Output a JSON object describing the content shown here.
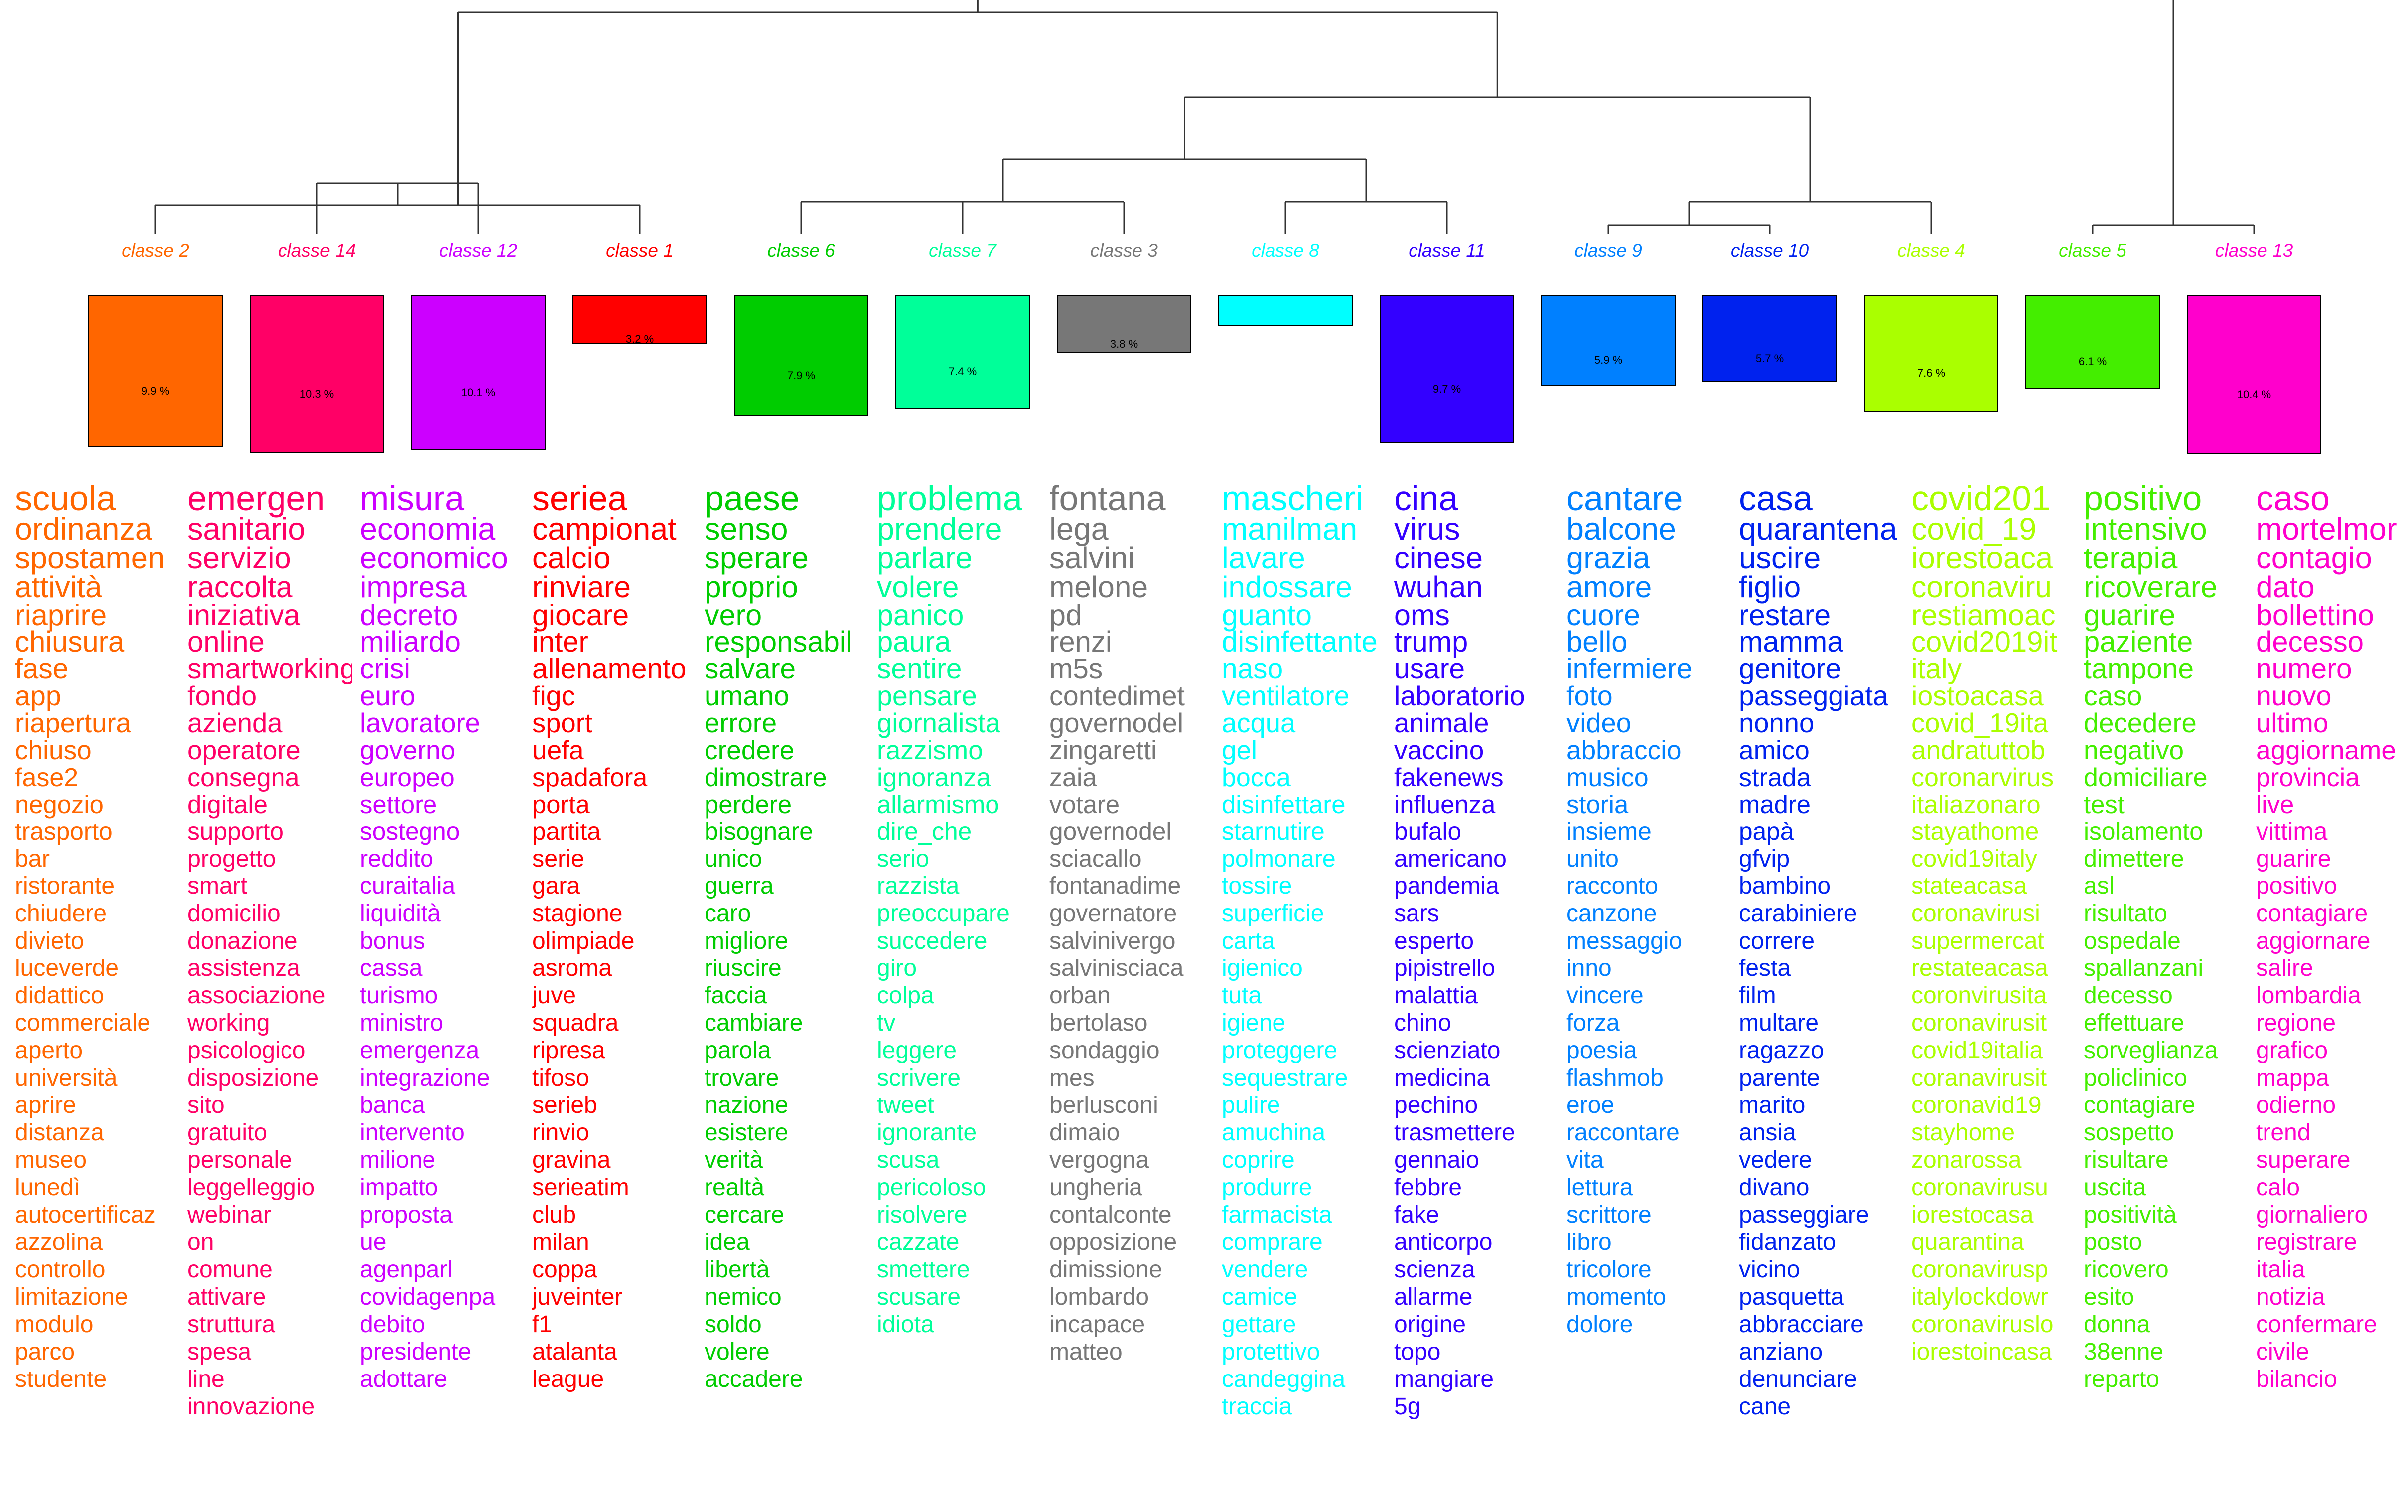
{
  "classes": [
    {
      "label": "classe  2",
      "color": "#FF6600",
      "percent": "9.9 %",
      "share": 9.9,
      "words": [
        "scuola",
        "ordinanza",
        "spostamen",
        "attività",
        "riaprire",
        "chiusura",
        "fase",
        "app",
        "riapertura",
        "chiuso",
        "fase2",
        "negozio",
        "trasporto",
        "bar",
        "ristorante",
        "chiudere",
        "divieto",
        "luceverde",
        "didattico",
        "commerciale",
        "aperto",
        "università",
        "aprire",
        "distanza",
        "museo",
        "lunedì",
        "autocertificaz",
        "azzolina",
        "controllo",
        "limitazione",
        "modulo",
        "parco",
        "studente"
      ]
    },
    {
      "label": "classe  14",
      "color": "#FF0066",
      "percent": "10.3 %",
      "share": 10.3,
      "words": [
        "emergen",
        "sanitario",
        "servizio",
        "raccolta",
        "iniziativa",
        "online",
        "smartworking",
        "fondo",
        "azienda",
        "operatore",
        "consegna",
        "digitale",
        "supporto",
        "progetto",
        "smart",
        "domicilio",
        "donazione",
        "assistenza",
        "associazione",
        "working",
        "psicologico",
        "disposizione",
        "sito",
        "gratuito",
        "personale",
        "leggelleggio",
        "webinar",
        "on",
        "comune",
        "attivare",
        "struttura",
        "spesa",
        "line",
        "innovazione"
      ]
    },
    {
      "label": "classe  12",
      "color": "#CC00FF",
      "percent": "10.1 %",
      "share": 10.1,
      "words": [
        "misura",
        "economia",
        "economico",
        "impresa",
        "decreto",
        "miliardo",
        "crisi",
        "euro",
        "lavoratore",
        "governo",
        "europeo",
        "settore",
        "sostegno",
        "reddito",
        "curaitalia",
        "liquidità",
        "bonus",
        "cassa",
        "turismo",
        "ministro",
        "emergenza",
        "integrazione",
        "banca",
        "intervento",
        "milione",
        "impatto",
        "proposta",
        "ue",
        "agenparl",
        "covidagenpa",
        "debito",
        "presidente",
        "adottare"
      ]
    },
    {
      "label": "classe  1",
      "color": "#FF0000",
      "percent": "3.2 %",
      "share": 3.2,
      "words": [
        "seriea",
        "campionat",
        "calcio",
        "rinviare",
        "giocare",
        "inter",
        "allenamento",
        "figc",
        "sport",
        "uefa",
        "spadafora",
        "porta",
        "partita",
        "serie",
        "gara",
        "stagione",
        "olimpiade",
        "asroma",
        "juve",
        "squadra",
        "ripresa",
        "tifoso",
        "serieb",
        "rinvio",
        "gravina",
        "serieatim",
        "club",
        "milan",
        "coppa",
        "juveinter",
        "f1",
        "atalanta",
        "league"
      ]
    },
    {
      "label": "classe  6",
      "color": "#00CC00",
      "percent": "7.9 %",
      "share": 7.9,
      "words": [
        "paese",
        "senso",
        "sperare",
        "proprio",
        "vero",
        "responsabil",
        "salvare",
        "umano",
        "errore",
        "credere",
        "dimostrare",
        "perdere",
        "bisognare",
        "unico",
        "guerra",
        "caro",
        "migliore",
        "riuscire",
        "faccia",
        "cambiare",
        "parola",
        "trovare",
        "nazione",
        "esistere",
        "verità",
        "realtà",
        "cercare",
        "idea",
        "libertà",
        "nemico",
        "soldo",
        "volere",
        "accadere"
      ]
    },
    {
      "label": "classe  7",
      "color": "#00FF99",
      "percent": "7.4 %",
      "share": 7.4,
      "words": [
        "problema",
        "prendere",
        "parlare",
        "volere",
        "panico",
        "paura",
        "sentire",
        "pensare",
        "giornalista",
        "razzismo",
        "ignoranza",
        "allarmismo",
        "dire_che",
        "serio",
        "razzista",
        "preoccupare",
        "succedere",
        "giro",
        "colpa",
        "tv",
        "leggere",
        "scrivere",
        "tweet",
        "ignorante",
        "scusa",
        "pericoloso",
        "risolvere",
        "cazzate",
        "smettere",
        "scusare",
        "idiota"
      ]
    },
    {
      "label": "classe  3",
      "color": "#777777",
      "percent": "3.8 %",
      "share": 3.8,
      "words": [
        "fontana",
        "lega",
        "salvini",
        "melone",
        "pd",
        "renzi",
        "m5s",
        "contedimet",
        "governodel",
        "zingaretti",
        "zaia",
        "votare",
        "governodel",
        "sciacallo",
        "fontanadime",
        "governatore",
        "salvinivergo",
        "salvinisciaca",
        "orban",
        "bertolaso",
        "sondaggio",
        "mes",
        "berlusconi",
        "dimaio",
        "vergogna",
        "ungheria",
        "contalconte",
        "opposizione",
        "dimissione",
        "lombardo",
        "incapace",
        "matteo"
      ]
    },
    {
      "label": "classe  8",
      "color": "#00FFFF",
      "percent": "",
      "share": 2.0,
      "words": [
        "mascheri",
        "manilman",
        "lavare",
        "indossare",
        "guanto",
        "disinfettante",
        "naso",
        "ventilatore",
        "acqua",
        "gel",
        "bocca",
        "disinfettare",
        "starnutire",
        "polmonare",
        "tossire",
        "superficie",
        "carta",
        "igienico",
        "tuta",
        "igiene",
        "proteggere",
        "sequestrare",
        "pulire",
        "amuchina",
        "coprire",
        "produrre",
        "farmacista",
        "comprare",
        "vendere",
        "camice",
        "gettare",
        "protettivo",
        "candeggina",
        "traccia"
      ]
    },
    {
      "label": "classe  11",
      "color": "#3300FF",
      "percent": "9.7 %",
      "share": 9.7,
      "words": [
        "cina",
        "virus",
        "cinese",
        "wuhan",
        "oms",
        "trump",
        "usare",
        "laboratorio",
        "animale",
        "vaccino",
        "fakenews",
        "influenza",
        "bufalo",
        "americano",
        "pandemia",
        "sars",
        "esperto",
        "pipistrello",
        "malattia",
        "chino",
        "scienziato",
        "medicina",
        "pechino",
        "trasmettere",
        "gennaio",
        "febbre",
        "fake",
        "anticorpo",
        "scienza",
        "allarme",
        "origine",
        "topo",
        "mangiare",
        "5g"
      ]
    },
    {
      "label": "classe  9",
      "color": "#0080FF",
      "percent": "5.9 %",
      "share": 5.9,
      "words": [
        "cantare",
        "balcone",
        "grazia",
        "amore",
        "cuore",
        "bello",
        "infermiere",
        "foto",
        "video",
        "abbraccio",
        "musico",
        "storia",
        "insieme",
        "unito",
        "racconto",
        "canzone",
        "messaggio",
        "inno",
        "vincere",
        "forza",
        "poesia",
        "flashmob",
        "eroe",
        "raccontare",
        "vita",
        "lettura",
        "scrittore",
        "libro",
        "tricolore",
        "momento",
        "dolore"
      ]
    },
    {
      "label": "classe  10",
      "color": "#0022EE",
      "percent": "5.7 %",
      "share": 5.7,
      "words": [
        "casa",
        "quarantena",
        "uscire",
        "figlio",
        "restare",
        "mamma",
        "genitore",
        "passeggiata",
        "nonno",
        "amico",
        "strada",
        "madre",
        "papà",
        "gfvip",
        "bambino",
        "carabiniere",
        "correre",
        "festa",
        "film",
        "multare",
        "ragazzo",
        "parente",
        "marito",
        "ansia",
        "vedere",
        "divano",
        "passeggiare",
        "fidanzato",
        "vicino",
        "pasquetta",
        "abbracciare",
        "anziano",
        "denunciare",
        "cane"
      ]
    },
    {
      "label": "classe  4",
      "color": "#AAFF00",
      "percent": "7.6 %",
      "share": 7.6,
      "words": [
        "covid201",
        "covid_19",
        "iorestoaca",
        "coronaviru",
        "restiamoac",
        "covid2019it",
        "italy",
        "iostoacasa",
        "covid_19ita",
        "andratuttob",
        "coronarvirus",
        "italiazonaro",
        "stayathome",
        "covid19italy",
        "stateacasa",
        "coronavirusi",
        "supermercat",
        "restateacasa",
        "coronvirusita",
        "coronavirusit",
        "covid19italia",
        "coranavirusit",
        "coronavid19",
        "stayhome",
        "zonarossa",
        "coronavirusu",
        "iorestocasa",
        "quarantina",
        "coronavirusp",
        "italylockdowr",
        "coronaviruslo",
        "iorestoincasa"
      ]
    },
    {
      "label": "classe  5",
      "color": "#44EE00",
      "percent": "6.1 %",
      "share": 6.1,
      "words": [
        "positivo",
        "intensivo",
        "terapia",
        "ricoverare",
        "guarire",
        "paziente",
        "tampone",
        "caso",
        "decedere",
        "negativo",
        "domiciliare",
        "test",
        "isolamento",
        "dimettere",
        "asl",
        "risultato",
        "ospedale",
        "spallanzani",
        "decesso",
        "effettuare",
        "sorveglianza",
        "policlinico",
        "contagiare",
        "sospetto",
        "risultare",
        "uscita",
        "positività",
        "posto",
        "ricovero",
        "esito",
        "donna",
        "38enne",
        "reparto"
      ]
    },
    {
      "label": "classe  13",
      "color": "#FF00CC",
      "percent": "10.4 %",
      "share": 10.4,
      "words": [
        "caso",
        "mortelmor",
        "contagio",
        "dato",
        "bollettino",
        "decesso",
        "numero",
        "nuovo",
        "ultimo",
        "aggiorname",
        "provincia",
        "live",
        "vittima",
        "guarire",
        "positivo",
        "contagiare",
        "aggiornare",
        "salire",
        "lombardia",
        "regione",
        "grafico",
        "mappa",
        "odierno",
        "trend",
        "superare",
        "calo",
        "giornaliero",
        "registrare",
        "italia",
        "notizia",
        "confermare",
        "civile",
        "bilancio"
      ]
    }
  ]
}
